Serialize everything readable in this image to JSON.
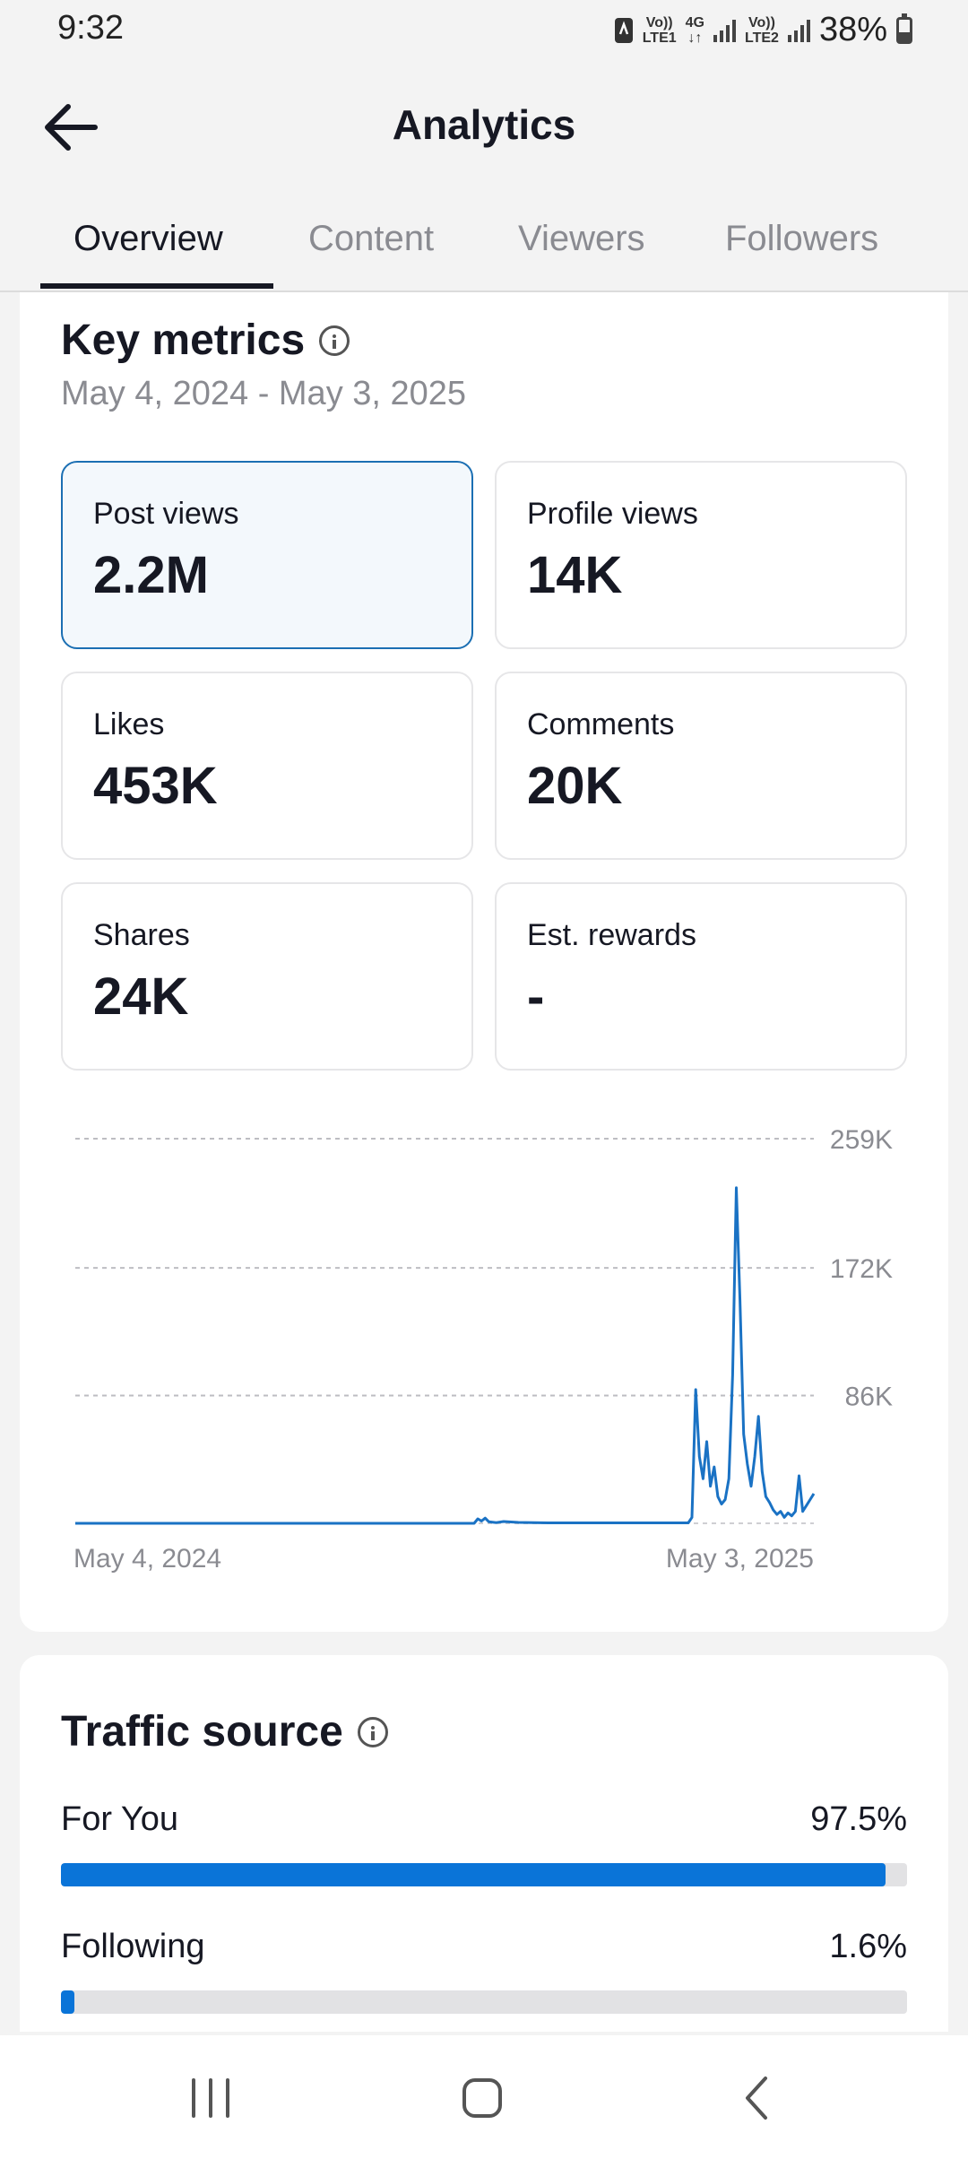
{
  "status_bar": {
    "time": "9:32",
    "sim1_top": "Vo))",
    "sim1_bottom": "LTE1",
    "network_top": "4G",
    "network_bottom": "↓↑",
    "sim2_top": "Vo))",
    "sim2_bottom": "LTE2",
    "battery": "38%"
  },
  "header": {
    "title": "Analytics",
    "back_icon": "arrow-left-icon"
  },
  "tabs": [
    {
      "label": "Overview",
      "active": true
    },
    {
      "label": "Content",
      "active": false
    },
    {
      "label": "Viewers",
      "active": false
    },
    {
      "label": "Followers",
      "active": false
    }
  ],
  "key_metrics": {
    "title": "Key metrics",
    "date_range": "May 4, 2024 - May 3, 2025",
    "metrics": [
      {
        "label": "Post views",
        "value": "2.2M",
        "selected": true
      },
      {
        "label": "Profile views",
        "value": "14K"
      },
      {
        "label": "Likes",
        "value": "453K"
      },
      {
        "label": "Comments",
        "value": "20K"
      },
      {
        "label": "Shares",
        "value": "24K"
      },
      {
        "label": "Est. rewards",
        "value": "-"
      }
    ]
  },
  "chart_data": {
    "type": "line",
    "x_start_label": "May 4, 2024",
    "x_end_label": "May 3, 2025",
    "y_ticks": [
      "86K",
      "172K",
      "259K"
    ],
    "ylim": [
      0,
      259000
    ],
    "grid": true,
    "series": [
      {
        "color": "#1a72c4",
        "x": [
          0,
          0.02,
          0.04,
          0.06,
          0.08,
          0.1,
          0.12,
          0.14,
          0.16,
          0.18,
          0.2,
          0.22,
          0.24,
          0.26,
          0.28,
          0.3,
          0.32,
          0.34,
          0.36,
          0.38,
          0.4,
          0.42,
          0.44,
          0.46,
          0.48,
          0.5,
          0.52,
          0.54,
          0.545,
          0.55,
          0.555,
          0.56,
          0.57,
          0.58,
          0.6,
          0.62,
          0.64,
          0.66,
          0.68,
          0.7,
          0.72,
          0.74,
          0.76,
          0.78,
          0.8,
          0.82,
          0.83,
          0.835,
          0.84,
          0.845,
          0.85,
          0.855,
          0.86,
          0.865,
          0.87,
          0.875,
          0.88,
          0.885,
          0.89,
          0.895,
          0.9,
          0.905,
          0.91,
          0.915,
          0.92,
          0.925,
          0.93,
          0.935,
          0.94,
          0.945,
          0.95,
          0.955,
          0.96,
          0.965,
          0.97,
          0.975,
          0.98,
          0.985,
          0.99,
          0.995,
          1.0
        ],
        "values": [
          0,
          0,
          0,
          0,
          0,
          0,
          0,
          0,
          0,
          0,
          0,
          0,
          0,
          0,
          0,
          0,
          0,
          0,
          0,
          0,
          0,
          0,
          0,
          0,
          0,
          0,
          0,
          0,
          3000,
          1500,
          3500,
          1000,
          500,
          1200,
          600,
          400,
          300,
          300,
          300,
          300,
          300,
          300,
          300,
          300,
          300,
          300,
          300,
          4000,
          90000,
          45000,
          30000,
          55000,
          25000,
          38000,
          18000,
          13000,
          16000,
          30000,
          100000,
          226000,
          150000,
          60000,
          40000,
          25000,
          45000,
          72000,
          35000,
          18000,
          14000,
          9000,
          6000,
          8000,
          4000,
          7000,
          5000,
          8000,
          32000,
          8000,
          12000,
          16000,
          20000
        ]
      }
    ]
  },
  "traffic_source": {
    "title": "Traffic source",
    "rows": [
      {
        "name": "For You",
        "percent": "97.5%",
        "fraction": 0.975
      },
      {
        "name": "Following",
        "percent": "1.6%",
        "fraction": 0.016
      }
    ]
  },
  "nav_bar": {
    "recents_icon": "recent-apps-icon",
    "home_icon": "home-icon",
    "back_icon": "back-icon"
  }
}
